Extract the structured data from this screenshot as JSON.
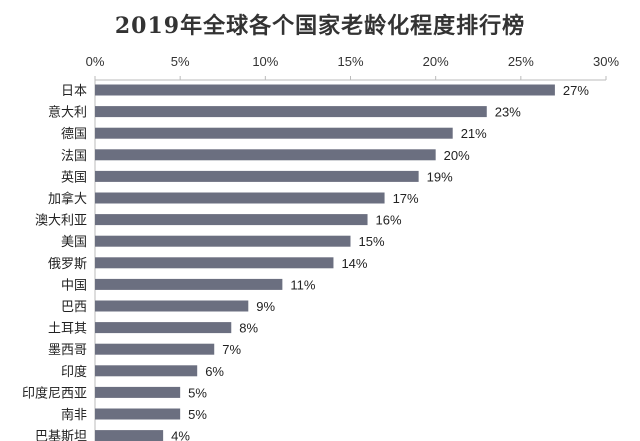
{
  "chart_data": {
    "type": "bar",
    "orientation": "horizontal",
    "title": "2019年全球各个国家老龄化程度排行榜",
    "categories": [
      "日本",
      "意大利",
      "德国",
      "法国",
      "英国",
      "加拿大",
      "澳大利亚",
      "美国",
      "俄罗斯",
      "中国",
      "巴西",
      "土耳其",
      "墨西哥",
      "印度",
      "印度尼西亚",
      "南非",
      "巴基斯坦"
    ],
    "values": [
      27,
      23,
      21,
      20,
      19,
      17,
      16,
      15,
      14,
      11,
      9,
      8,
      7,
      6,
      5,
      5,
      4
    ],
    "value_labels": [
      "27%",
      "23%",
      "21%",
      "20%",
      "19%",
      "17%",
      "16%",
      "15%",
      "14%",
      "11%",
      "9%",
      "8%",
      "7%",
      "6%",
      "5%",
      "5%",
      "4%"
    ],
    "x_ticks": [
      0,
      5,
      10,
      15,
      20,
      25,
      30
    ],
    "x_tick_labels": [
      "0%",
      "5%",
      "10%",
      "15%",
      "20%",
      "25%",
      "30%"
    ],
    "xlim": [
      0,
      30
    ],
    "x_axis_position": "top",
    "xlabel": "",
    "ylabel": "",
    "grid": false,
    "legend": "none",
    "bar_color": "#6b6f80"
  }
}
